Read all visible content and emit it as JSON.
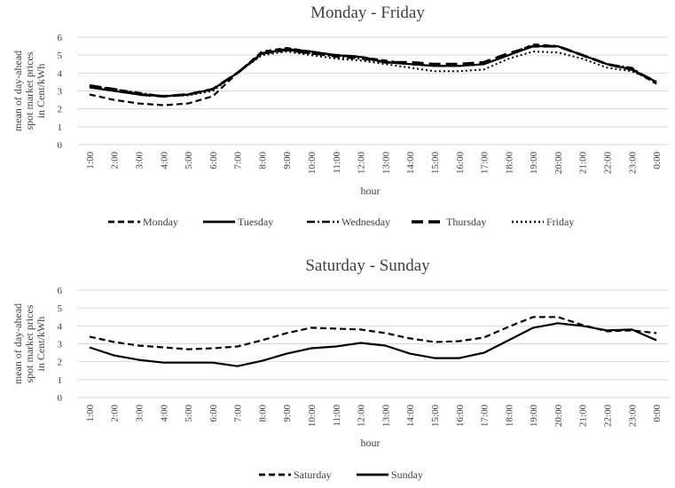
{
  "chart_data": [
    {
      "type": "line",
      "title": "Monday - Friday",
      "xlabel": "hour",
      "ylabel": [
        "mean of day-ahead",
        "spot market prices",
        "in Cent/kWh"
      ],
      "ylim": [
        0,
        6
      ],
      "yticks": [
        "0",
        "1",
        "2",
        "3",
        "4",
        "5",
        "6"
      ],
      "grid": true,
      "legend_position": "bottom",
      "categories": [
        "1:00",
        "2:00",
        "3:00",
        "4:00",
        "5:00",
        "6:00",
        "7:00",
        "8:00",
        "9:00",
        "10:00",
        "11:00",
        "12:00",
        "13:00",
        "14:00",
        "15:00",
        "16:00",
        "17:00",
        "18:00",
        "19:00",
        "20:00",
        "21:00",
        "22:00",
        "23:00",
        "0:00"
      ],
      "series": [
        {
          "name": "Monday",
          "dash": "7,4",
          "width": 2.2,
          "values": [
            2.8,
            2.5,
            2.3,
            2.2,
            2.3,
            2.7,
            4.0,
            5.2,
            5.4,
            5.2,
            5.0,
            4.9,
            4.7,
            4.5,
            4.4,
            4.4,
            4.5,
            5.0,
            5.6,
            5.5,
            5.0,
            4.5,
            4.2,
            3.4
          ]
        },
        {
          "name": "Tuesday",
          "dash": "",
          "width": 2.2,
          "values": [
            3.2,
            3.0,
            2.8,
            2.7,
            2.8,
            3.1,
            4.0,
            5.1,
            5.35,
            5.2,
            5.0,
            4.9,
            4.6,
            4.5,
            4.4,
            4.4,
            4.5,
            5.0,
            5.5,
            5.5,
            5.0,
            4.5,
            4.2,
            3.5
          ]
        },
        {
          "name": "Wednesday",
          "dash": "9,3,2,3",
          "width": 2.0,
          "values": [
            3.3,
            3.1,
            2.9,
            2.7,
            2.8,
            3.1,
            4.0,
            5.1,
            5.3,
            5.1,
            4.9,
            4.8,
            4.6,
            4.5,
            4.4,
            4.4,
            4.5,
            5.0,
            5.5,
            5.5,
            5.0,
            4.5,
            4.3,
            3.4
          ]
        },
        {
          "name": "Thursday",
          "dash": "13,6",
          "width": 3.0,
          "values": [
            3.3,
            3.1,
            2.8,
            2.7,
            2.8,
            3.1,
            4.0,
            5.1,
            5.3,
            5.1,
            5.0,
            4.9,
            4.6,
            4.6,
            4.5,
            4.5,
            4.6,
            5.1,
            5.5,
            5.5,
            5.0,
            4.5,
            4.2,
            3.5
          ]
        },
        {
          "name": "Friday",
          "dash": "2,3",
          "width": 2.0,
          "values": [
            3.2,
            3.0,
            2.8,
            2.7,
            2.75,
            3.0,
            4.0,
            5.0,
            5.2,
            5.0,
            4.8,
            4.7,
            4.5,
            4.3,
            4.1,
            4.1,
            4.2,
            4.8,
            5.2,
            5.15,
            4.8,
            4.3,
            4.1,
            3.5
          ]
        }
      ]
    },
    {
      "type": "line",
      "title": "Saturday - Sunday",
      "xlabel": "hour",
      "ylabel": [
        "mean of day-ahead",
        "spot market prices",
        "in Cent/kWh"
      ],
      "ylim": [
        0,
        6
      ],
      "yticks": [
        "0",
        "1",
        "2",
        "3",
        "4",
        "5",
        "6"
      ],
      "grid": true,
      "legend_position": "bottom",
      "categories": [
        "1:00",
        "2:00",
        "3:00",
        "4:00",
        "5:00",
        "6:00",
        "7:00",
        "8:00",
        "9:00",
        "10:00",
        "11:00",
        "12:00",
        "13:00",
        "14:00",
        "15:00",
        "16:00",
        "17:00",
        "18:00",
        "19:00",
        "20:00",
        "21:00",
        "22:00",
        "23:00",
        "0:00"
      ],
      "series": [
        {
          "name": "Saturday",
          "dash": "7,4",
          "width": 2.2,
          "values": [
            3.4,
            3.1,
            2.9,
            2.8,
            2.7,
            2.75,
            2.85,
            3.2,
            3.6,
            3.9,
            3.85,
            3.8,
            3.6,
            3.3,
            3.1,
            3.15,
            3.35,
            3.95,
            4.5,
            4.5,
            4.05,
            3.7,
            3.75,
            3.6
          ]
        },
        {
          "name": "Sunday",
          "dash": "",
          "width": 2.2,
          "values": [
            2.8,
            2.35,
            2.1,
            1.95,
            1.95,
            1.95,
            1.75,
            2.05,
            2.45,
            2.75,
            2.85,
            3.05,
            2.9,
            2.45,
            2.2,
            2.2,
            2.5,
            3.2,
            3.9,
            4.15,
            4.0,
            3.75,
            3.8,
            3.2
          ]
        }
      ]
    }
  ]
}
